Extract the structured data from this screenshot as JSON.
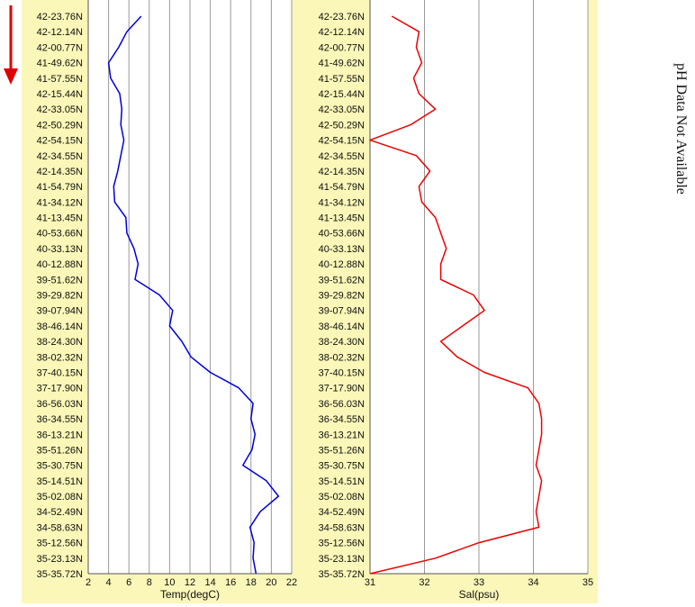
{
  "side_note": "pH Data Not Available",
  "arrow": {
    "color": "#e00000",
    "icon": "down-arrow-icon"
  },
  "panel_bg": "#faf7b8",
  "grid_color": "#9a9a9a",
  "y_labels": [
    "42-23.76N",
    "42-12.14N",
    "42-00.77N",
    "41-49.62N",
    "41-57.55N",
    "42-15.44N",
    "42-33.05N",
    "42-50.29N",
    "42-54.15N",
    "42-34.55N",
    "42-14.35N",
    "41-54.79N",
    "41-34.12N",
    "41-13.45N",
    "40-53.66N",
    "40-33.13N",
    "40-12.88N",
    "39-51.62N",
    "39-29.82N",
    "39-07.94N",
    "38-46.14N",
    "38-24.30N",
    "38-02.32N",
    "37-40.15N",
    "37-17.90N",
    "36-56.03N",
    "36-34.55N",
    "36-13.21N",
    "35-51.26N",
    "35-30.75N",
    "35-14.51N",
    "35-02.08N",
    "34-52.49N",
    "34-58.63N",
    "35-12.56N",
    "35-23.13N",
    "35-35.72N"
  ],
  "chart_data": [
    {
      "type": "line",
      "xlabel": "Temp(degC)",
      "xlim": [
        2,
        22
      ],
      "xticks": [
        2,
        4,
        6,
        8,
        10,
        12,
        14,
        16,
        18,
        20,
        22
      ],
      "series": [
        {
          "color": "#0000dd",
          "values": [
            7.2,
            5.8,
            5.0,
            4.0,
            4.2,
            5.1,
            5.3,
            5.2,
            5.5,
            5.2,
            4.9,
            4.5,
            4.6,
            5.7,
            5.8,
            6.5,
            6.9,
            6.6,
            9.0,
            10.3,
            10.0,
            11.2,
            12.1,
            14.0,
            16.8,
            18.2,
            18.0,
            18.4,
            18.1,
            17.2,
            19.5,
            20.7,
            18.9,
            17.9,
            18.3,
            18.2,
            18.5
          ]
        }
      ]
    },
    {
      "type": "line",
      "xlabel": "Sal(psu)",
      "xlim": [
        31,
        35
      ],
      "xticks": [
        31,
        32,
        33,
        34,
        35
      ],
      "series": [
        {
          "color": "#ee0000",
          "values": [
            31.4,
            31.9,
            31.85,
            31.95,
            31.8,
            31.9,
            32.2,
            31.75,
            31.0,
            31.85,
            32.1,
            31.9,
            31.95,
            32.2,
            32.3,
            32.4,
            32.3,
            32.3,
            32.9,
            33.1,
            32.7,
            32.3,
            32.6,
            33.1,
            33.9,
            34.1,
            34.15,
            34.15,
            34.1,
            34.05,
            34.15,
            34.1,
            34.05,
            34.1,
            33.0,
            32.2,
            31.0
          ]
        }
      ]
    }
  ]
}
